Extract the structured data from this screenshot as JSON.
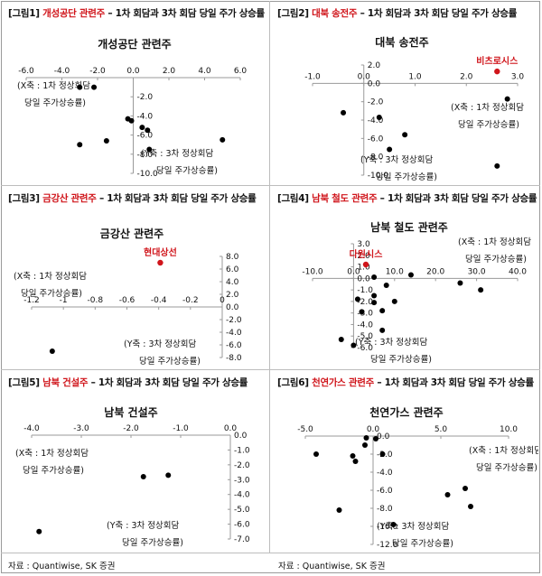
{
  "panels": [
    {
      "tag": "[그림1]",
      "keyword": "개성공단 관련주",
      "rest": " – 1차 회담과 3차 회담 당일 주가 상승률",
      "chart_data": {
        "type": "scatter",
        "title": "개성공단 관련주",
        "xlim": [
          -6,
          6
        ],
        "ylim": [
          -10,
          0
        ],
        "xticks": [
          -6,
          -4,
          -2,
          0,
          2,
          4,
          6
        ],
        "yticks": [
          -2,
          -4,
          -6,
          -8,
          -10
        ],
        "xtick_labels": [
          "-6.0",
          "-4.0",
          "-2.0",
          "0.0",
          "2.0",
          "4.0",
          "6.0"
        ],
        "ytick_labels": [
          "-2.0",
          "-4.0",
          "-6.0",
          "-8.0",
          "-10.0"
        ],
        "xlabel_lines": [
          "(X축 : 1차 정상회담",
          "당일 주가상승률)"
        ],
        "ylabel_lines": [
          "(Y축 : 3차 정상회담",
          "당일 주가상승률)"
        ],
        "points": [
          [
            -3.0,
            -1.0
          ],
          [
            -2.2,
            -1.0
          ],
          [
            -0.3,
            -4.3
          ],
          [
            -0.1,
            -4.5
          ],
          [
            0.5,
            -5.2
          ],
          [
            0.8,
            -5.5
          ],
          [
            -3.0,
            -7.0
          ],
          [
            -1.5,
            -6.6
          ],
          [
            0.9,
            -7.5
          ],
          [
            5.0,
            -6.5
          ]
        ],
        "highlights": []
      }
    },
    {
      "tag": "[그림2]",
      "keyword": "대북 송전주",
      "rest": " – 1차 회담과 3차 회담 당일 주가 상승률",
      "chart_data": {
        "type": "scatter",
        "title": "대북 송전주",
        "xlim": [
          -1,
          3
        ],
        "ylim": [
          -10,
          2
        ],
        "xticks": [
          -1,
          0,
          1,
          2,
          3
        ],
        "yticks": [
          2,
          0,
          -2,
          -4,
          -6,
          -8,
          -10
        ],
        "xtick_labels": [
          "-1.0",
          "0.0",
          "1.0",
          "2.0",
          "3.0"
        ],
        "ytick_labels": [
          "2.0",
          "0.0",
          "-2.0",
          "-4.0",
          "-6.0",
          "-8.0",
          "-10.0"
        ],
        "xlabel_lines": [
          "(X축 : 1차 정상회담",
          "당일 주가상승률)"
        ],
        "ylabel_lines": [
          "(Y축 : 3차 정상회담",
          "당일 주가상승률)"
        ],
        "points": [
          [
            -0.4,
            -3.2
          ],
          [
            0.3,
            -3.7
          ],
          [
            0.8,
            -5.6
          ],
          [
            0.5,
            -7.2
          ],
          [
            2.8,
            -1.7
          ],
          [
            2.6,
            -9.0
          ]
        ],
        "highlights": [
          {
            "label": "비츠로시스",
            "x": 2.6,
            "y": 1.3
          }
        ]
      }
    },
    {
      "tag": "[그림3]",
      "keyword": "금강산 관련주",
      "rest": " – 1차 회담과 3차 회담 당일 주가 상승률",
      "chart_data": {
        "type": "scatter",
        "title": "금강산 관련주",
        "xlim": [
          -1.2,
          0
        ],
        "ylim": [
          -8,
          8
        ],
        "xticks": [
          -1.2,
          -1.0,
          -0.8,
          -0.6,
          -0.4,
          -0.2,
          0
        ],
        "yticks": [
          8,
          6,
          4,
          2,
          0,
          -2,
          -4,
          -6,
          -8
        ],
        "xtick_labels": [
          "-1.2",
          "-1",
          "-0.8",
          "-0.6",
          "-0.4",
          "-0.2",
          "0"
        ],
        "ytick_labels": [
          "8.0",
          "6.0",
          "4.0",
          "2.0",
          "0.0",
          "-2.0",
          "-4.0",
          "-6.0",
          "-8.0"
        ],
        "xlabel_lines": [
          "(X축 : 1차 정상회담",
          "당일 주가상승률)"
        ],
        "ylabel_lines": [
          "(Y축 : 3차 정상회담",
          "당일 주가상승률)"
        ],
        "points": [
          [
            -1.07,
            -7.0
          ]
        ],
        "highlights": [
          {
            "label": "현대상선",
            "x": -0.39,
            "y": 7.0
          }
        ]
      }
    },
    {
      "tag": "[그림4]",
      "keyword": "남북 철도 관련주",
      "rest": " – 1차 회담과 3차 회담 당일 주가 상승률",
      "chart_data": {
        "type": "scatter",
        "title": "남북 철도 관련주",
        "xlim": [
          -10,
          40
        ],
        "ylim": [
          -6,
          3
        ],
        "xticks": [
          -10,
          0,
          10,
          20,
          30,
          40
        ],
        "yticks": [
          3,
          2,
          1,
          0,
          -1,
          -2,
          -3,
          -4,
          -5,
          -6
        ],
        "xtick_labels": [
          "-10.0",
          "0.0",
          "10.0",
          "20.0",
          "30.0",
          "40.0"
        ],
        "ytick_labels": [
          "3.0",
          "2.0",
          "1.0",
          "0.0",
          "-1.0",
          "-2.0",
          "-3.0",
          "-4.0",
          "-5.0",
          "-6.0"
        ],
        "xlabel_lines": [
          "(X축 : 1차 정상회담",
          "당일 주가상승률)"
        ],
        "ylabel_lines": [
          "(Y축 : 3차 정상회담",
          "당일 주가상승률)"
        ],
        "points": [
          [
            5,
            0.1
          ],
          [
            14,
            0.3
          ],
          [
            8,
            -0.6
          ],
          [
            26,
            -0.4
          ],
          [
            31,
            -1.0
          ],
          [
            1,
            -1.8
          ],
          [
            5,
            -1.5
          ],
          [
            5,
            -2.1
          ],
          [
            10,
            -2.0
          ],
          [
            2,
            -2.9
          ],
          [
            7,
            -2.8
          ],
          [
            7,
            -4.5
          ],
          [
            -3,
            -5.3
          ],
          [
            0,
            -5.8
          ]
        ],
        "highlights": [
          {
            "label": "다원시스",
            "x": 3.0,
            "y": 1.2
          }
        ]
      }
    },
    {
      "tag": "[그림5]",
      "keyword": "남북 건설주",
      "rest": " – 1차 회담과 3차 회담 당일 주가 상승률",
      "chart_data": {
        "type": "scatter",
        "title": "남북 건설주",
        "xlim": [
          -4,
          0
        ],
        "ylim": [
          -7,
          0
        ],
        "xticks": [
          -4,
          -3,
          -2,
          -1,
          0
        ],
        "yticks": [
          0,
          -1,
          -2,
          -3,
          -4,
          -5,
          -6,
          -7
        ],
        "xtick_labels": [
          "-4.0",
          "-3.0",
          "-2.0",
          "-1.0",
          "0.0"
        ],
        "ytick_labels": [
          "0.0",
          "-1.0",
          "-2.0",
          "-3.0",
          "-4.0",
          "-5.0",
          "-6.0",
          "-7.0"
        ],
        "xlabel_lines": [
          "(X축 : 1차 정상회담",
          "당일 주가상승률)"
        ],
        "ylabel_lines": [
          "(Y축 : 3차 정상회담",
          "당일 주가상승률)"
        ],
        "points": [
          [
            -1.75,
            -2.8
          ],
          [
            -1.25,
            -2.7
          ],
          [
            -3.85,
            -6.5
          ]
        ],
        "highlights": []
      }
    },
    {
      "tag": "[그림6]",
      "keyword": "천연가스 관련주",
      "rest": " – 1차 회담과 3차 회담 당일 주가 상승률",
      "chart_data": {
        "type": "scatter",
        "title": "천연가스 관련주",
        "xlim": [
          -5,
          10
        ],
        "ylim": [
          -12,
          0
        ],
        "xticks": [
          -5,
          0,
          5,
          10
        ],
        "yticks": [
          0,
          -2,
          -4,
          -6,
          -8,
          -10,
          -12
        ],
        "xtick_labels": [
          "-5.0",
          "0.0",
          "5.0",
          "10.0"
        ],
        "ytick_labels": [
          "0.0",
          "-2.0",
          "-4.0",
          "-6.0",
          "-8.0",
          "-10.0",
          "-12.0"
        ],
        "xlabel_lines": [
          "(X축 : 1차 정상회담",
          "당일 주가상승률)"
        ],
        "ylabel_lines": [
          "(Y축 : 3차 정상회담",
          "당일 주가상승률)"
        ],
        "points": [
          [
            -0.5,
            -0.2
          ],
          [
            0.2,
            -0.3
          ],
          [
            -0.6,
            -1.0
          ],
          [
            -4.2,
            -2.0
          ],
          [
            -1.5,
            -2.2
          ],
          [
            -1.3,
            -2.8
          ],
          [
            0.7,
            -2.0
          ],
          [
            -2.5,
            -8.2
          ],
          [
            1.5,
            -9.8
          ],
          [
            5.5,
            -6.5
          ],
          [
            6.8,
            -5.8
          ],
          [
            7.2,
            -7.8
          ]
        ],
        "highlights": []
      }
    }
  ],
  "source_left": "자료 : Quantiwise, SK 증권",
  "source_right": "자료 : Quantiwise, SK 증권",
  "colors": {
    "dot": "#000000",
    "highlight": "#d0151b",
    "text": "#111111",
    "axis": "#9a9a9a"
  }
}
